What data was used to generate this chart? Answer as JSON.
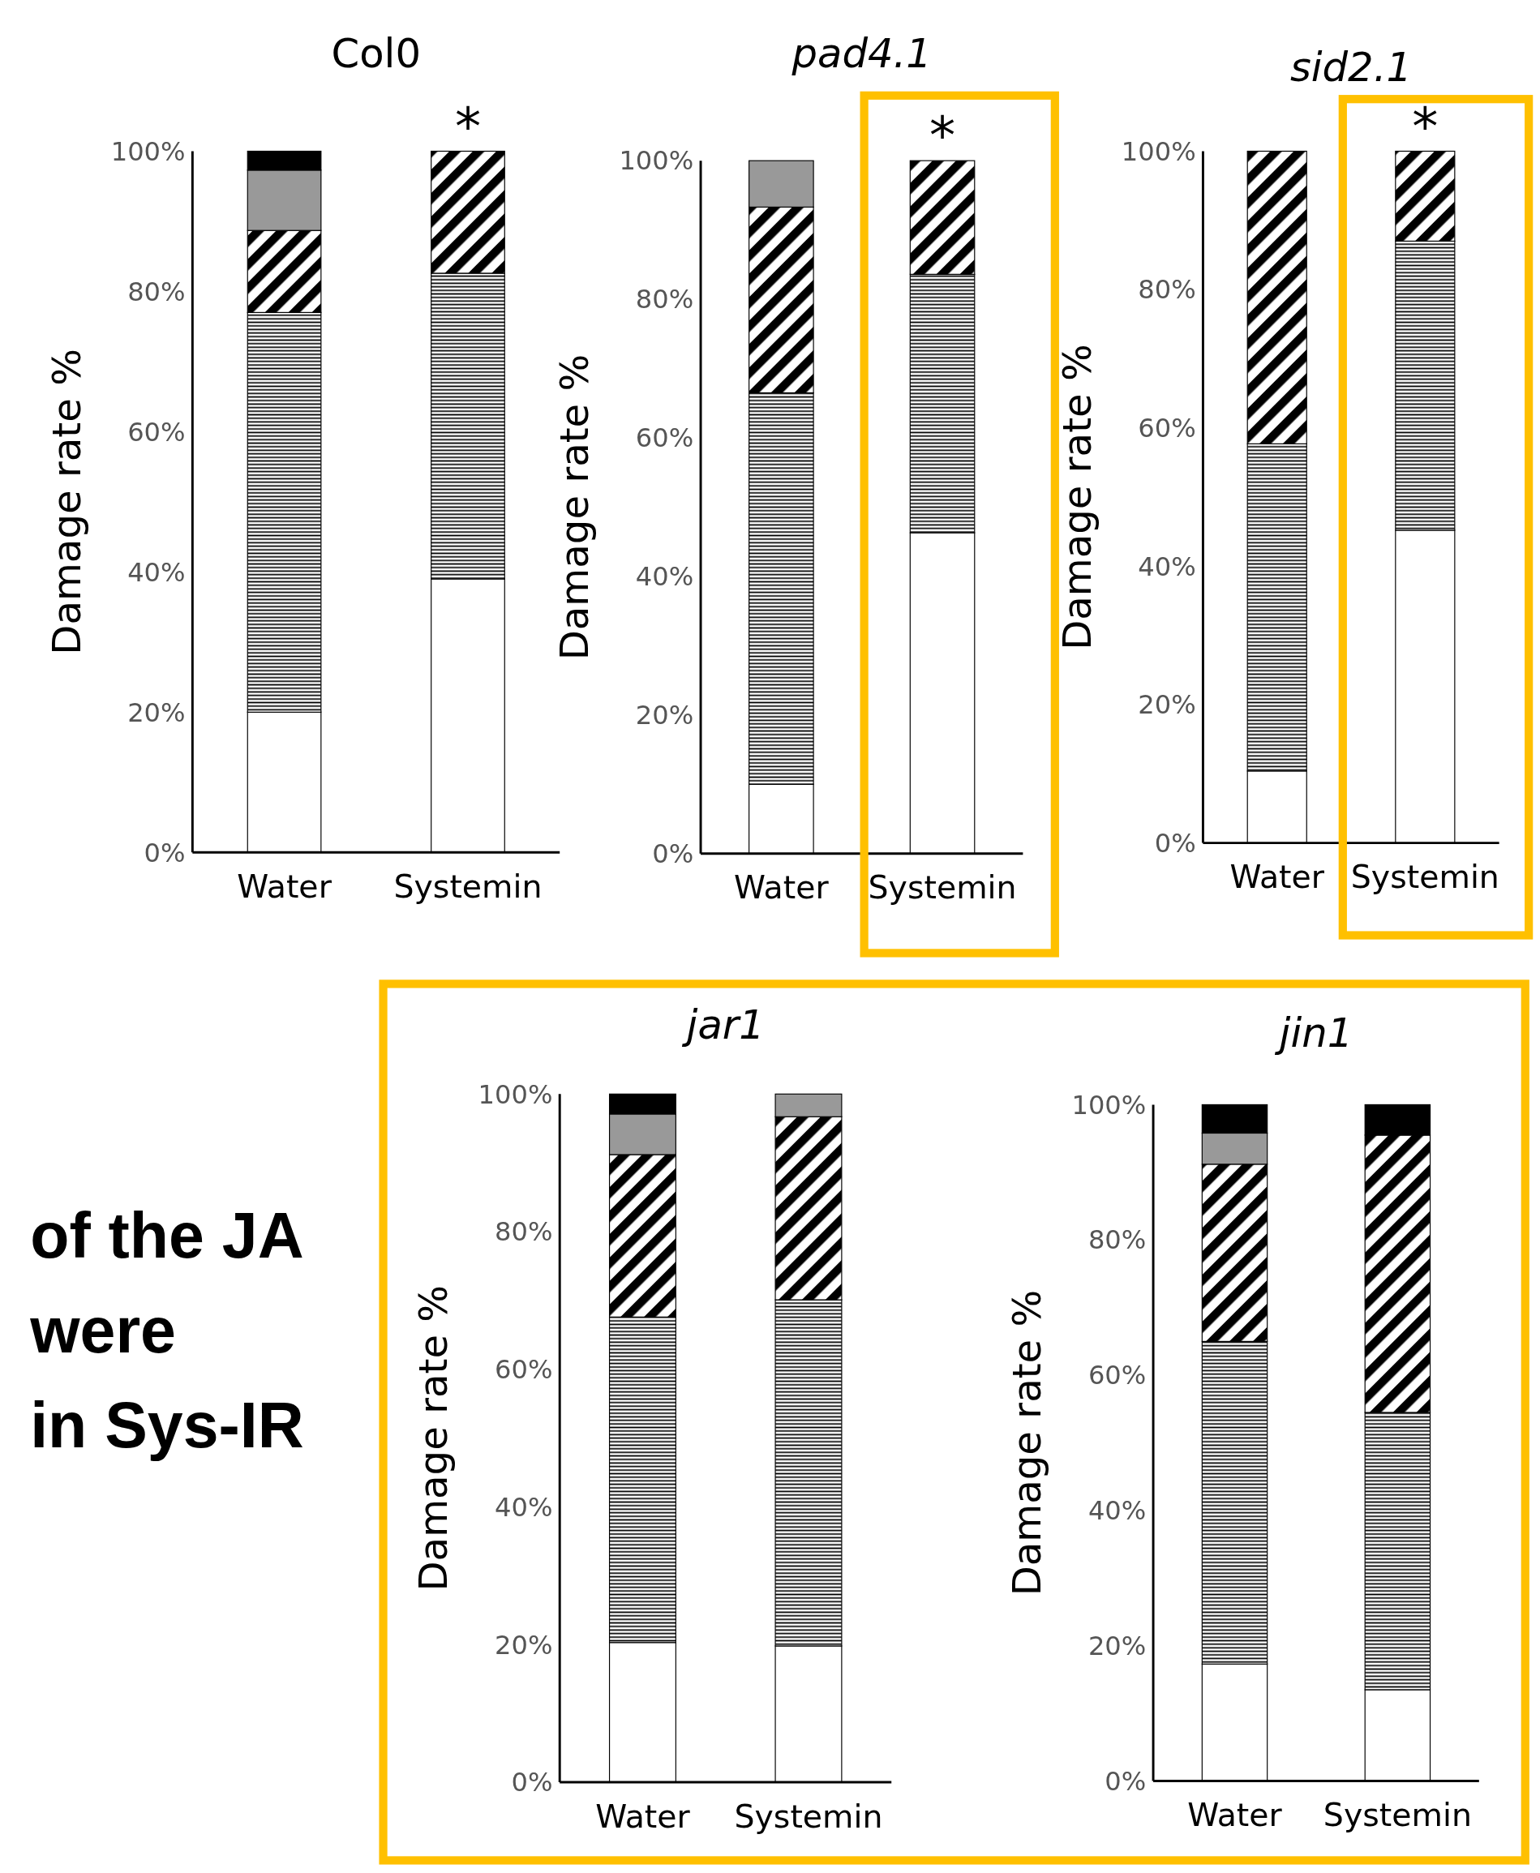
{
  "chart_data": [
    {
      "type": "bar",
      "title": "Col0",
      "ylabel": "Damage rate %",
      "categories": [
        "Water",
        "Systemin"
      ],
      "stacked": true,
      "ylim": [
        0,
        100
      ],
      "yticks": [
        {
          "value": 0,
          "label": "0%"
        },
        {
          "value": 20,
          "label": "20%"
        },
        {
          "value": 40,
          "label": "40%"
        },
        {
          "value": 60,
          "label": "60%"
        },
        {
          "value": 80,
          "label": "80%"
        },
        {
          "value": 100,
          "label": "100%"
        }
      ],
      "series": [
        {
          "color": "#ffffff",
          "values": [
            20,
            39
          ]
        },
        {
          "color": "#000000",
          "values": [
            57,
            43.6
          ]
        },
        {
          "color": "#000000",
          "values": [
            11.7,
            17.4
          ]
        },
        {
          "color": "#999999",
          "values": [
            8.6,
            null
          ]
        },
        {
          "color": "#000000",
          "values": [
            2.7,
            null
          ]
        }
      ],
      "annotations": [
        {
          "text": "*",
          "x": "Systemin",
          "y": 100
        }
      ]
    },
    {
      "type": "bar",
      "title": "pad4.1",
      "ylabel": "Damage rate %",
      "categories": [
        "Water",
        "Systemin"
      ],
      "stacked": true,
      "ylim": [
        0,
        100
      ],
      "yticks": [
        {
          "value": 0,
          "label": "0%"
        },
        {
          "value": 20,
          "label": "20%"
        },
        {
          "value": 40,
          "label": "40%"
        },
        {
          "value": 60,
          "label": "60%"
        },
        {
          "value": 80,
          "label": "80%"
        },
        {
          "value": 100,
          "label": "100%"
        }
      ],
      "series": [
        {
          "color": "#ffffff",
          "values": [
            10,
            46.3
          ]
        },
        {
          "color": "#000000",
          "values": [
            56.5,
            37.3
          ]
        },
        {
          "color": "#000000",
          "values": [
            26.8,
            16.4
          ]
        },
        {
          "color": "#999999",
          "values": [
            6.7,
            null
          ]
        }
      ],
      "annotations": [
        {
          "text": "*",
          "x": "Systemin",
          "y": 100
        }
      ]
    },
    {
      "type": "bar",
      "title": "sid2.1",
      "ylabel": "Damage rate %",
      "categories": [
        "Water",
        "Systemin"
      ],
      "stacked": true,
      "ylim": [
        0,
        100
      ],
      "yticks": [
        {
          "value": 0,
          "label": "0%"
        },
        {
          "value": 20,
          "label": "20%"
        },
        {
          "value": 40,
          "label": "40%"
        },
        {
          "value": 60,
          "label": "60%"
        },
        {
          "value": 80,
          "label": "80%"
        },
        {
          "value": 100,
          "label": "100%"
        }
      ],
      "series": [
        {
          "color": "#ffffff",
          "values": [
            10.4,
            45.2
          ]
        },
        {
          "color": "#000000",
          "values": [
            47.3,
            41.8
          ]
        },
        {
          "color": "#000000",
          "values": [
            42.3,
            13
          ]
        }
      ],
      "annotations": [
        {
          "text": "*",
          "x": "Systemin",
          "y": 100
        }
      ]
    },
    {
      "type": "other",
      "annotations": [
        "of the JA",
        "were",
        "in Sys-IR"
      ]
    },
    {
      "type": "bar",
      "title": "jar1",
      "ylabel": "Damage rate %",
      "categories": [
        "Water",
        "Systemin"
      ],
      "stacked": true,
      "ylim": [
        0,
        100
      ],
      "yticks": [
        {
          "value": 0,
          "label": "0%"
        },
        {
          "value": 20,
          "label": "20%"
        },
        {
          "value": 40,
          "label": "40%"
        },
        {
          "value": 60,
          "label": "60%"
        },
        {
          "value": 80,
          "label": "80%"
        },
        {
          "value": 100,
          "label": "100%"
        }
      ],
      "series": [
        {
          "color": "#ffffff",
          "values": [
            20.3,
            19.8
          ]
        },
        {
          "color": "#000000",
          "values": [
            47.3,
            50.3
          ]
        },
        {
          "color": "#000000",
          "values": [
            23.6,
            26.6
          ]
        },
        {
          "color": "#999999",
          "values": [
            5.9,
            3.3
          ]
        },
        {
          "color": "#000000",
          "values": [
            2.9,
            null
          ]
        }
      ]
    },
    {
      "type": "bar",
      "title": "jin1",
      "ylabel": "Damage rate %",
      "categories": [
        "Water",
        "Systemin"
      ],
      "stacked": true,
      "ylim": [
        0,
        100
      ],
      "yticks": [
        {
          "value": 0,
          "label": "0%"
        },
        {
          "value": 20,
          "label": "20%"
        },
        {
          "value": 40,
          "label": "40%"
        },
        {
          "value": 60,
          "label": "60%"
        },
        {
          "value": 80,
          "label": "80%"
        },
        {
          "value": 100,
          "label": "100%"
        }
      ],
      "series": [
        {
          "color": "#ffffff",
          "values": [
            17.3,
            13.5
          ]
        },
        {
          "color": "#000000",
          "values": [
            47.7,
            41
          ]
        },
        {
          "color": "#000000",
          "values": [
            26.2,
            41
          ]
        },
        {
          "color": "#999999",
          "values": [
            4.6,
            null
          ]
        },
        {
          "color": "#000000",
          "values": [
            4.2,
            4.5
          ]
        }
      ]
    }
  ]
}
